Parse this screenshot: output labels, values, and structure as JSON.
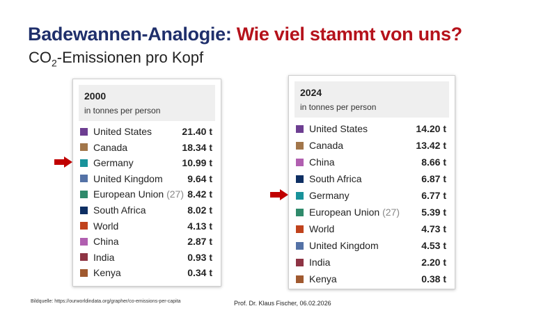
{
  "title": {
    "part1": "Badewannen-Analogie:",
    "part2": "Wie viel stammt von uns?"
  },
  "subtitle": {
    "pre": "CO",
    "sub": "2",
    "post": "-Emissionen pro Kopf"
  },
  "panels": [
    {
      "year": "2000",
      "unit": "in tonnes per person",
      "rows": [
        {
          "name": "United States",
          "value": "21.40 t",
          "color": "#6d3e91"
        },
        {
          "name": "Canada",
          "value": "18.34 t",
          "color": "#a2764a"
        },
        {
          "name": "Germany",
          "value": "10.99 t",
          "color": "#18929a"
        },
        {
          "name": "United Kingdom",
          "value": "9.64 t",
          "color": "#5472a6"
        },
        {
          "name": "European Union",
          "suffix": "(27)",
          "value": "8.42 t",
          "color": "#2f8a6b"
        },
        {
          "name": "South Africa",
          "value": "8.02 t",
          "color": "#0e2f63"
        },
        {
          "name": "World",
          "value": "4.13 t",
          "color": "#c0421c"
        },
        {
          "name": "China",
          "value": "2.87 t",
          "color": "#b15fb0"
        },
        {
          "name": "India",
          "value": "0.93 t",
          "color": "#8e3444"
        },
        {
          "name": "Kenya",
          "value": "0.34 t",
          "color": "#a0592f"
        }
      ]
    },
    {
      "year": "2024",
      "unit": "in tonnes per person",
      "rows": [
        {
          "name": "United States",
          "value": "14.20 t",
          "color": "#6d3e91"
        },
        {
          "name": "Canada",
          "value": "13.42 t",
          "color": "#a2764a"
        },
        {
          "name": "China",
          "value": "8.66 t",
          "color": "#b15fb0"
        },
        {
          "name": "South Africa",
          "value": "6.87 t",
          "color": "#0e2f63"
        },
        {
          "name": "Germany",
          "value": "6.77 t",
          "color": "#18929a"
        },
        {
          "name": "European Union",
          "suffix": "(27)",
          "value": "5.39 t",
          "color": "#2f8a6b"
        },
        {
          "name": "World",
          "value": "4.73 t",
          "color": "#c0421c"
        },
        {
          "name": "United Kingdom",
          "value": "4.53 t",
          "color": "#5472a6"
        },
        {
          "name": "India",
          "value": "2.20 t",
          "color": "#8e3444"
        },
        {
          "name": "Kenya",
          "value": "0.38 t",
          "color": "#a0592f"
        }
      ]
    }
  ],
  "highlight": {
    "row": "Germany",
    "arrow_color": "#c00000"
  },
  "footer": {
    "source": "Bildquelle: https://ourworldindata.org/grapher/co-emissions-per-capita",
    "author": "Prof. Dr. Klaus Fischer, 06.02.2026"
  }
}
